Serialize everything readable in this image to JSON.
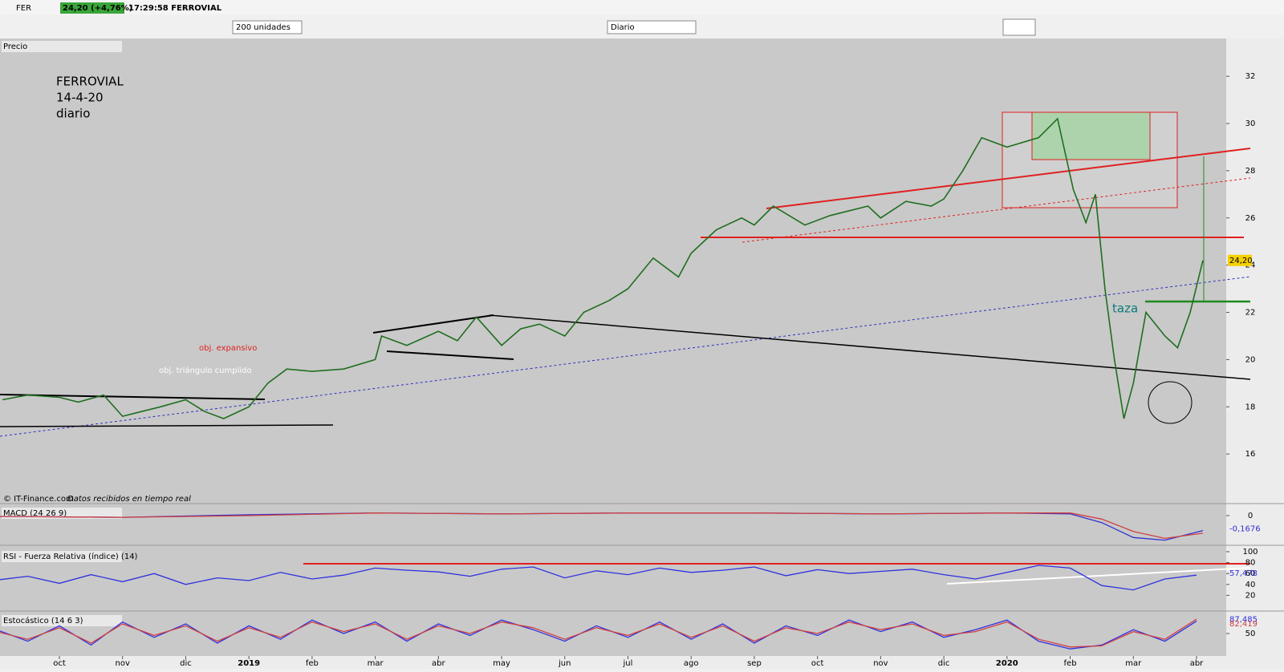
{
  "window": {
    "symbol": "FER",
    "quote": "24,20 (+4,76%)",
    "time_name": "17:29:58 FERROVIAL",
    "range_select": "200 unidades",
    "period_select": "Diario"
  },
  "price_panel": {
    "notes": [
      "FERROVIAL",
      "14-4-20",
      "diario"
    ],
    "obj_expansivo": "obj. expansivo",
    "obj_triangulo": "obj. triángulo cumplido",
    "taza": "taza",
    "credit": "© IT-Finance.com",
    "credit_note": "Datos recibidos en tiempo real",
    "last_label": "24,20"
  },
  "chart_data": [
    {
      "type": "line",
      "title": "Precio",
      "xlim": [
        0.06,
        19.47
      ],
      "ylim": [
        13.9,
        33.6
      ],
      "yticks": [
        16,
        18,
        20,
        22,
        24,
        26,
        28,
        30,
        32
      ],
      "xticks": [
        {
          "value": 1,
          "label": "oct"
        },
        {
          "value": 2,
          "label": "nov"
        },
        {
          "value": 3,
          "label": "dic"
        },
        {
          "value": 4,
          "label": "2019"
        },
        {
          "value": 5,
          "label": "feb"
        },
        {
          "value": 6,
          "label": "mar"
        },
        {
          "value": 7,
          "label": "abr"
        },
        {
          "value": 8,
          "label": "may"
        },
        {
          "value": 9,
          "label": "jun"
        },
        {
          "value": 10,
          "label": "jul"
        },
        {
          "value": 11,
          "label": "ago"
        },
        {
          "value": 12,
          "label": "sep"
        },
        {
          "value": 13,
          "label": "oct"
        },
        {
          "value": 14,
          "label": "nov"
        },
        {
          "value": 15,
          "label": "dic"
        },
        {
          "value": 16,
          "label": "2020"
        },
        {
          "value": 17,
          "label": "feb"
        },
        {
          "value": 18,
          "label": "mar"
        },
        {
          "value": 19,
          "label": "abr"
        }
      ],
      "x": [
        0.1,
        0.5,
        1,
        1.3,
        1.7,
        2,
        2.3,
        2.6,
        3,
        3.3,
        3.6,
        4,
        4.3,
        4.6,
        5,
        5.5,
        6,
        6.1,
        6.5,
        7,
        7.3,
        7.6,
        8,
        8.3,
        8.6,
        9,
        9.3,
        9.7,
        10,
        10.4,
        10.8,
        11,
        11.4,
        11.8,
        12,
        12.3,
        12.8,
        13.2,
        13.8,
        14,
        14.4,
        14.8,
        15,
        15.3,
        15.6,
        16,
        16.5,
        16.8,
        17.05,
        17.25,
        17.4,
        17.55,
        17.7,
        17.85,
        18,
        18.2,
        18.5,
        18.7,
        18.9,
        19.1
      ],
      "series": [
        {
          "color": "#1f6e1f",
          "values": [
            18.3,
            18.5,
            18.4,
            18.2,
            18.5,
            17.6,
            17.8,
            18.0,
            18.3,
            17.8,
            17.5,
            18.0,
            19.0,
            19.6,
            19.5,
            19.6,
            20.0,
            21.0,
            20.6,
            21.2,
            20.8,
            21.8,
            20.6,
            21.3,
            21.5,
            21.0,
            22.0,
            22.5,
            23.0,
            24.3,
            23.5,
            24.5,
            25.5,
            26.0,
            25.7,
            26.5,
            25.7,
            26.1,
            26.5,
            26.0,
            26.7,
            26.5,
            26.8,
            28.0,
            29.4,
            29.0,
            29.4,
            30.2,
            27.2,
            25.8,
            27.0,
            23.0,
            20.0,
            17.5,
            19.0,
            22.0,
            21.0,
            20.5,
            22.0,
            24.2
          ]
        }
      ]
    },
    {
      "type": "line",
      "title": "MACD (24 26 9)",
      "ylim": [
        -0.32,
        0.1
      ],
      "yticks": [
        0
      ],
      "last_labels": [
        "-0,1676"
      ],
      "x": [
        0,
        2,
        4,
        6,
        8,
        10,
        12,
        14,
        16,
        17,
        17.5,
        18,
        18.5,
        19.1
      ],
      "series": [
        {
          "color": "#3030d0",
          "values": [
            -0.01,
            -0.02,
            0.01,
            0.03,
            0.02,
            0.03,
            0.03,
            0.02,
            0.03,
            0.02,
            -0.08,
            -0.25,
            -0.28,
            -0.17
          ]
        },
        {
          "color": "#d04040",
          "values": [
            -0.01,
            -0.02,
            0.0,
            0.03,
            0.02,
            0.03,
            0.03,
            0.02,
            0.03,
            0.03,
            -0.04,
            -0.18,
            -0.26,
            -0.2
          ]
        }
      ]
    },
    {
      "type": "line",
      "title": "RSI - Fuerza Relativa (índice) (14)",
      "ylim": [
        0,
        100
      ],
      "yticks": [
        20,
        40,
        60,
        80,
        100
      ],
      "last_labels": [
        "57,478"
      ],
      "x": [
        0,
        0.5,
        1,
        1.5,
        2,
        2.5,
        3,
        3.5,
        4,
        4.5,
        5,
        5.5,
        6,
        6.5,
        7,
        7.5,
        8,
        8.5,
        9,
        9.5,
        10,
        10.5,
        11,
        11.5,
        12,
        12.5,
        13,
        13.5,
        14,
        14.5,
        15,
        15.5,
        16,
        16.5,
        17,
        17.5,
        18,
        18.5,
        19
      ],
      "series": [
        {
          "color": "#3030e0",
          "values": [
            48,
            55,
            42,
            58,
            45,
            60,
            40,
            52,
            47,
            62,
            50,
            57,
            70,
            66,
            63,
            55,
            68,
            72,
            52,
            65,
            58,
            70,
            62,
            66,
            72,
            56,
            67,
            60,
            64,
            68,
            58,
            50,
            62,
            75,
            70,
            38,
            30,
            50,
            57
          ]
        }
      ]
    },
    {
      "type": "line",
      "title": "Estocástico (14 6 3)",
      "ylim": [
        0,
        100
      ],
      "yticks": [
        50
      ],
      "last_labels": [
        "87,485",
        "82,419"
      ],
      "x": [
        0,
        0.5,
        1,
        1.5,
        2,
        2.5,
        3,
        3.5,
        4,
        4.5,
        5,
        5.5,
        6,
        6.5,
        7,
        7.5,
        8,
        8.5,
        9,
        9.5,
        10,
        10.5,
        11,
        11.5,
        12,
        12.5,
        13,
        13.5,
        14,
        14.5,
        15,
        15.5,
        16,
        16.5,
        17,
        17.5,
        18,
        18.5,
        19
      ],
      "series": [
        {
          "color": "#3030e0",
          "values": [
            60,
            30,
            70,
            20,
            80,
            40,
            75,
            25,
            70,
            35,
            85,
            50,
            80,
            30,
            75,
            45,
            85,
            60,
            30,
            70,
            40,
            80,
            35,
            75,
            25,
            70,
            45,
            85,
            55,
            80,
            40,
            60,
            85,
            30,
            10,
            20,
            60,
            30,
            82
          ]
        },
        {
          "color": "#d04040",
          "values": [
            55,
            35,
            65,
            25,
            75,
            45,
            70,
            30,
            65,
            40,
            80,
            55,
            75,
            35,
            70,
            50,
            80,
            65,
            35,
            65,
            45,
            75,
            40,
            70,
            30,
            65,
            50,
            80,
            60,
            75,
            45,
            55,
            80,
            35,
            15,
            18,
            55,
            35,
            87
          ]
        }
      ]
    }
  ]
}
